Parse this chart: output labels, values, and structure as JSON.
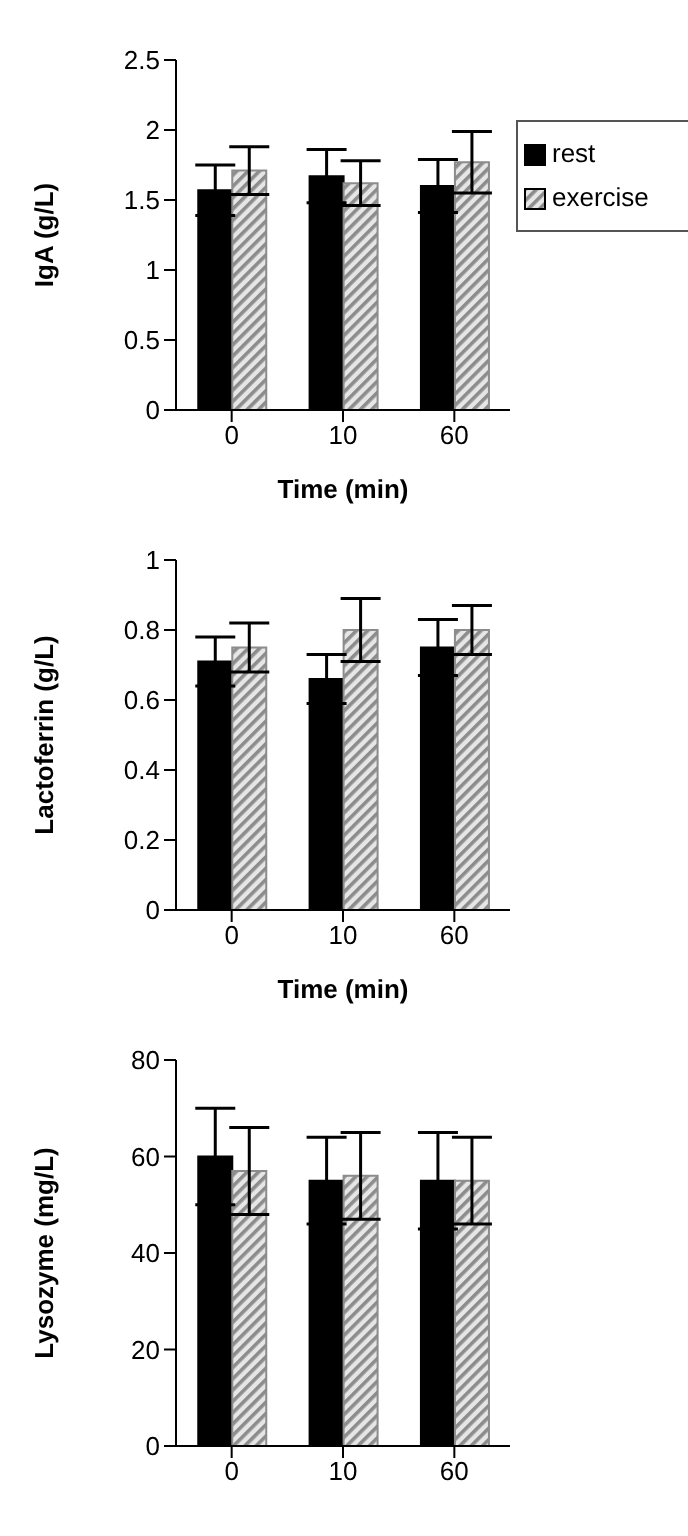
{
  "chart_data": [
    {
      "type": "bar",
      "xlabel": "Time (min)",
      "ylabel": "IgA (g/L)",
      "categories": [
        "0",
        "10",
        "60"
      ],
      "ylim": [
        0,
        2.5
      ],
      "yticks": [
        0,
        0.5,
        1,
        1.5,
        2,
        2.5
      ],
      "legend": "right",
      "grid": false,
      "series": [
        {
          "name": "rest",
          "color": "#000000",
          "values": [
            1.57,
            1.67,
            1.6
          ],
          "errors": [
            0.18,
            0.19,
            0.19
          ]
        },
        {
          "name": "exercise",
          "color": "#8c8c8c",
          "values": [
            1.71,
            1.62,
            1.77
          ],
          "errors": [
            0.17,
            0.16,
            0.22
          ]
        }
      ]
    },
    {
      "type": "bar",
      "xlabel": "Time (min)",
      "ylabel": "Lactoferrin (g/L)",
      "categories": [
        "0",
        "10",
        "60"
      ],
      "ylim": [
        0,
        1
      ],
      "yticks": [
        0,
        0.2,
        0.4,
        0.6,
        0.8,
        1
      ],
      "legend": false,
      "grid": false,
      "series": [
        {
          "color": "#000000",
          "values": [
            0.71,
            0.66,
            0.75
          ],
          "errors": [
            0.07,
            0.07,
            0.08
          ]
        },
        {
          "color": "#8c8c8c",
          "values": [
            0.75,
            0.8,
            0.8
          ],
          "errors": [
            0.07,
            0.09,
            0.07
          ]
        }
      ]
    },
    {
      "type": "bar",
      "ylabel": "Lysozyme (mg/L)",
      "categories": [
        "0",
        "10",
        "60"
      ],
      "ylim": [
        0,
        80
      ],
      "yticks": [
        0,
        20,
        40,
        60,
        80
      ],
      "legend": false,
      "grid": false,
      "series": [
        {
          "color": "#000000",
          "values": [
            60,
            55,
            55
          ],
          "errors": [
            10,
            9,
            10
          ]
        },
        {
          "color": "#8c8c8c",
          "values": [
            57,
            56,
            55
          ],
          "errors": [
            9,
            9,
            9
          ]
        }
      ]
    }
  ]
}
